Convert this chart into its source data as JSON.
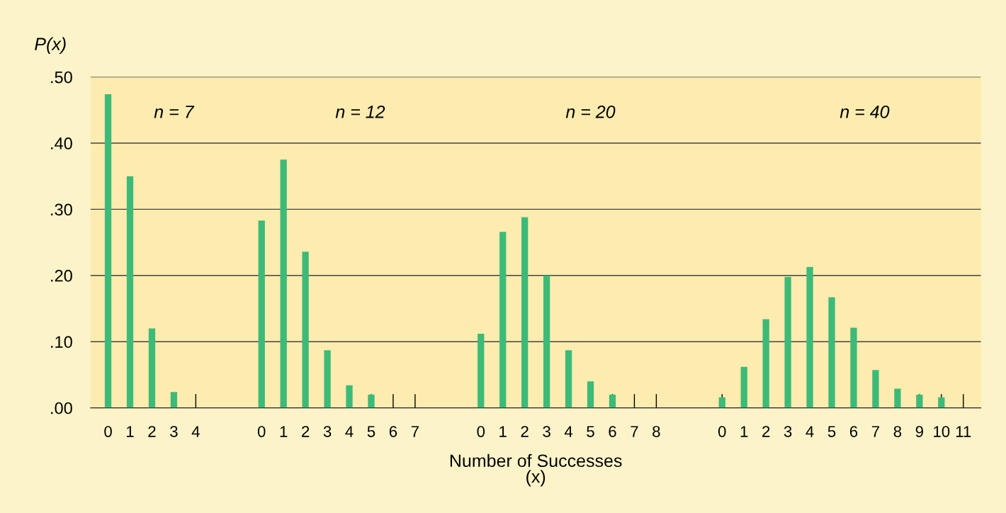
{
  "chart_data": {
    "type": "bar",
    "ylabel": "P(x)",
    "xlabel": "Number of Successes\n(x)",
    "categories": [
      "0",
      "1",
      "2",
      "3",
      "4",
      null,
      null,
      "0",
      "1",
      "2",
      "3",
      "4",
      "5",
      "6",
      "7",
      null,
      null,
      "0",
      "1",
      "2",
      "3",
      "4",
      "5",
      "6",
      "7",
      "8",
      null,
      null,
      "0",
      "1",
      "2",
      "3",
      "4",
      "5",
      "6",
      "7",
      "8",
      "9",
      "10",
      "11"
    ],
    "values": [
      0.474,
      0.35,
      0.12,
      0.024,
      0,
      null,
      null,
      0.283,
      0.375,
      0.236,
      0.087,
      0.034,
      0.02,
      0,
      0,
      null,
      null,
      0.112,
      0.266,
      0.288,
      0.2,
      0.087,
      0.04,
      0.02,
      0,
      0,
      null,
      null,
      0.016,
      0.062,
      0.134,
      0.198,
      0.213,
      0.167,
      0.121,
      0.057,
      0.029,
      0.02,
      0.016,
      0
    ],
    "color": "#3dba78",
    "ylim": [
      0,
      0.5
    ],
    "yticks": [
      {
        "value": 0,
        "label": ".00"
      },
      {
        "value": 0.1,
        "label": ".10"
      },
      {
        "value": 0.2,
        "label": ".20"
      },
      {
        "value": 0.3,
        "label": ".30"
      },
      {
        "value": 0.4,
        "label": ".40"
      },
      {
        "value": 0.5,
        "label": ".50"
      }
    ],
    "grid": "y",
    "annotations": [
      "n = 7",
      "n = 12",
      "n = 20",
      "n = 40"
    ]
  }
}
